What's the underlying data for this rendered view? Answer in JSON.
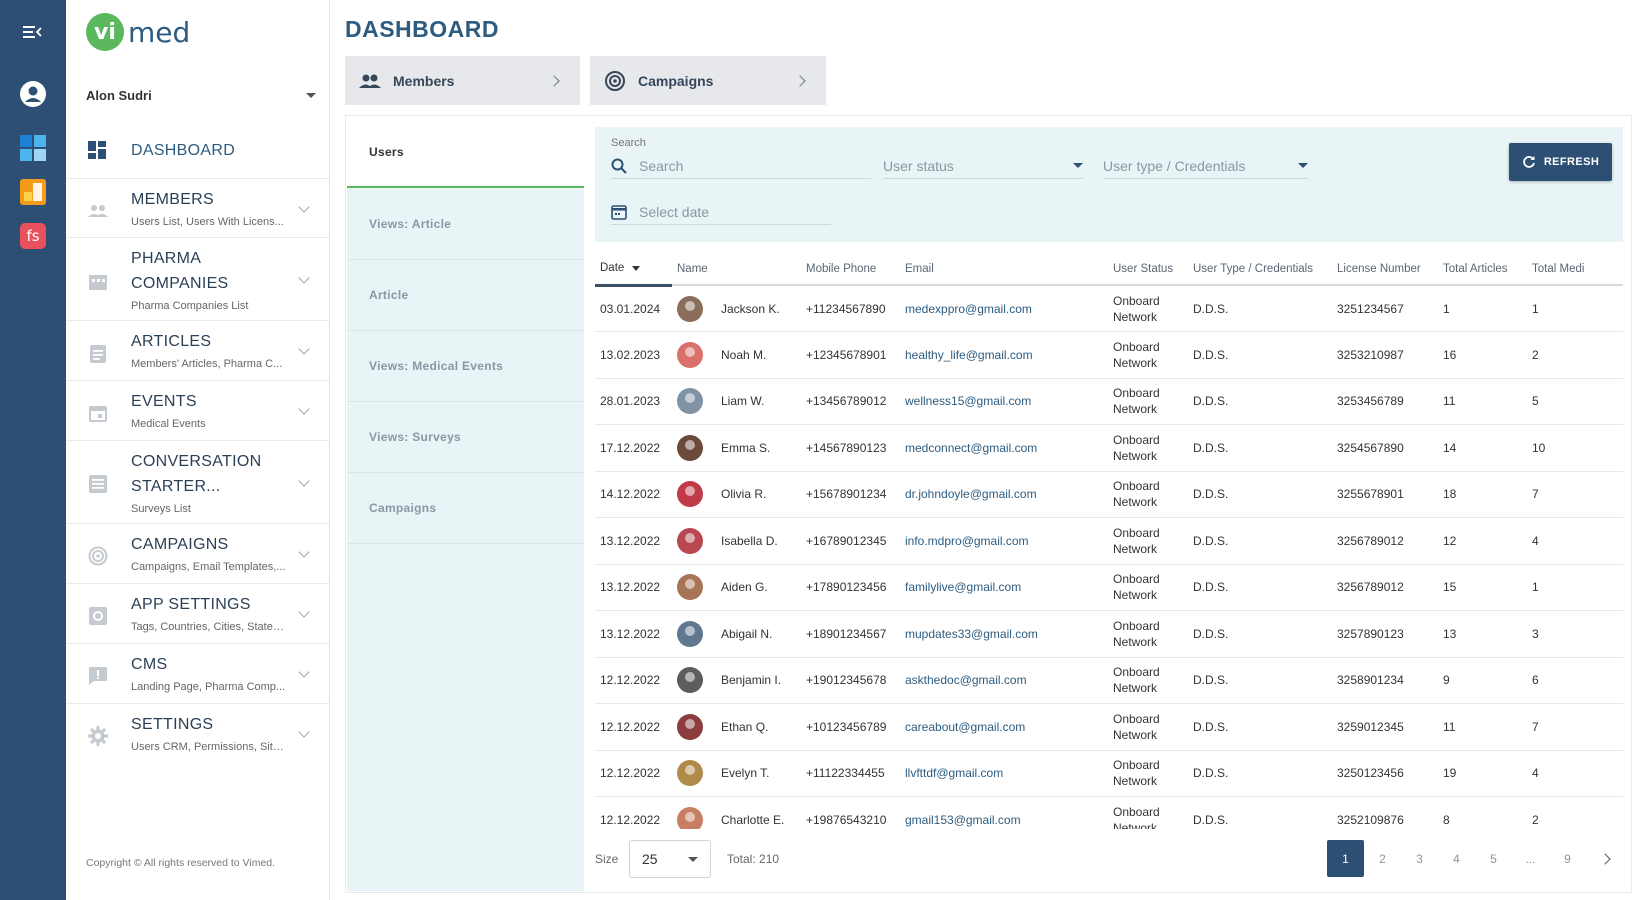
{
  "rail": {
    "icons": [
      "menu-collapse-icon",
      "account-circle-icon",
      "app-blue-icon",
      "app-orange-icon",
      "app-fs-icon"
    ],
    "fs_label": "fs"
  },
  "brand": {
    "badge": "vi",
    "name": "med",
    "green": "#5cb85c",
    "blue": "#2d5c80"
  },
  "sidebar": {
    "user_name": "Alon Sudri",
    "items": [
      {
        "label": "DASHBOARD",
        "sub": ""
      },
      {
        "label": "MEMBERS",
        "sub": "Users List, Users With Licens..."
      },
      {
        "label": "PHARMA COMPANIES",
        "sub": "Pharma Companies List"
      },
      {
        "label": "ARTICLES",
        "sub": "Members' Articles, Pharma C..."
      },
      {
        "label": "EVENTS",
        "sub": "Medical Events"
      },
      {
        "label": "CONVERSATION STARTER...",
        "sub": "Surveys List"
      },
      {
        "label": "CAMPAIGNS",
        "sub": "Campaigns, Email Templates,..."
      },
      {
        "label": "APP SETTINGS",
        "sub": "Tags, Countries, Cities, States..."
      },
      {
        "label": "CMS",
        "sub": "Landing Page, Pharma Comp..."
      },
      {
        "label": "SETTINGS",
        "sub": "Users CRM, Permissions, Site..."
      }
    ],
    "copyright": "Copyright © All rights reserved to Vimed."
  },
  "page": {
    "title": "DASHBOARD"
  },
  "quick_tabs": [
    {
      "label": "Members"
    },
    {
      "label": "Campaigns"
    }
  ],
  "vtabs": [
    "Users",
    "Views: Article",
    "Article",
    "Views: Medical Events",
    "Views: Surveys",
    "Campaigns"
  ],
  "filters": {
    "search_label": "Search",
    "search_placeholder": "Search",
    "user_status_placeholder": "User status",
    "user_type_placeholder": "User type / Credentials",
    "date_placeholder": "Select date",
    "refresh_label": "REFRESH"
  },
  "table": {
    "columns": [
      "Date",
      "Name",
      "Mobile Phone",
      "Email",
      "User Status",
      "User Type / Credentials",
      "License Number",
      "Total Articles",
      "Total Medi"
    ],
    "rows": [
      {
        "date": "03.01.2024",
        "name": "Jackson K.",
        "phone": "+11234567890",
        "email": "medexppro@gmail.com",
        "status1": "Onboard",
        "status2": "Network",
        "type": "D.D.S.",
        "license": "3251234567",
        "articles": "1",
        "medi": "1",
        "avatar_color": "#8a6d5a"
      },
      {
        "date": "13.02.2023",
        "name": "Noah M.",
        "phone": "+12345678901",
        "email": "healthy_life@gmail.com",
        "status1": "Onboard",
        "status2": "Network",
        "type": "D.D.S.",
        "license": "3253210987",
        "articles": "16",
        "medi": "2",
        "avatar_color": "#d9706a"
      },
      {
        "date": "28.01.2023",
        "name": "Liam W.",
        "phone": "+13456789012",
        "email": "wellness15@gmail.com",
        "status1": "Onboard",
        "status2": "Network",
        "type": "D.D.S.",
        "license": "3253456789",
        "articles": "11",
        "medi": "5",
        "avatar_color": "#7f93a5"
      },
      {
        "date": "17.12.2022",
        "name": "Emma S.",
        "phone": "+14567890123",
        "email": "medconnect@gmail.com",
        "status1": "Onboard",
        "status2": "Network",
        "type": "D.D.S.",
        "license": "3254567890",
        "articles": "14",
        "medi": "10",
        "avatar_color": "#6b4a3a"
      },
      {
        "date": "14.12.2022",
        "name": "Olivia R.",
        "phone": "+15678901234",
        "email": "dr.johndoyle@gmail.com",
        "status1": "Onboard",
        "status2": "Network",
        "type": "D.D.S.",
        "license": "3255678901",
        "articles": "18",
        "medi": "7",
        "avatar_color": "#c03a4a"
      },
      {
        "date": "13.12.2022",
        "name": "Isabella D.",
        "phone": "+16789012345",
        "email": "info.mdpro@gmail.com",
        "status1": "Onboard",
        "status2": "Network",
        "type": "D.D.S.",
        "license": "3256789012",
        "articles": "12",
        "medi": "4",
        "avatar_color": "#b9474f"
      },
      {
        "date": "13.12.2022",
        "name": "Aiden G.",
        "phone": "+17890123456",
        "email": "familylive@gmail.com",
        "status1": "Onboard",
        "status2": "Network",
        "type": "D.D.S.",
        "license": "3256789012",
        "articles": "15",
        "medi": "1",
        "avatar_color": "#a87456"
      },
      {
        "date": "13.12.2022",
        "name": "Abigail N.",
        "phone": "+18901234567",
        "email": "mupdates33@gmail.com",
        "status1": "Onboard",
        "status2": "Network",
        "type": "D.D.S.",
        "license": "3257890123",
        "articles": "13",
        "medi": "3",
        "avatar_color": "#5f7890"
      },
      {
        "date": "12.12.2022",
        "name": "Benjamin I.",
        "phone": "+19012345678",
        "email": "askthedoc@gmail.com",
        "status1": "Onboard",
        "status2": "Network",
        "type": "D.D.S.",
        "license": "3258901234",
        "articles": "9",
        "medi": "6",
        "avatar_color": "#5d5d5d"
      },
      {
        "date": "12.12.2022",
        "name": "Ethan Q.",
        "phone": "+10123456789",
        "email": "careabout@gmail.com",
        "status1": "Onboard",
        "status2": "Network",
        "type": "D.D.S.",
        "license": "3259012345",
        "articles": "11",
        "medi": "7",
        "avatar_color": "#8c3e3e"
      },
      {
        "date": "12.12.2022",
        "name": "Evelyn T.",
        "phone": "+11122334455",
        "email": "llvfttdf@gmail.com",
        "status1": "Onboard",
        "status2": "Network",
        "type": "D.D.S.",
        "license": "3250123456",
        "articles": "19",
        "medi": "4",
        "avatar_color": "#b08a4a"
      },
      {
        "date": "12.12.2022",
        "name": "Charlotte E.",
        "phone": "+19876543210",
        "email": "gmail153@gmail.com",
        "status1": "Onboard",
        "status2": "Network",
        "type": "D.D.S.",
        "license": "3252109876",
        "articles": "8",
        "medi": "2",
        "avatar_color": "#c77e63"
      }
    ]
  },
  "footer": {
    "size_label": "Size",
    "size_value": "25",
    "total_label": "Total: 210",
    "pages": [
      "1",
      "2",
      "3",
      "4",
      "5",
      "...",
      "9"
    ]
  }
}
